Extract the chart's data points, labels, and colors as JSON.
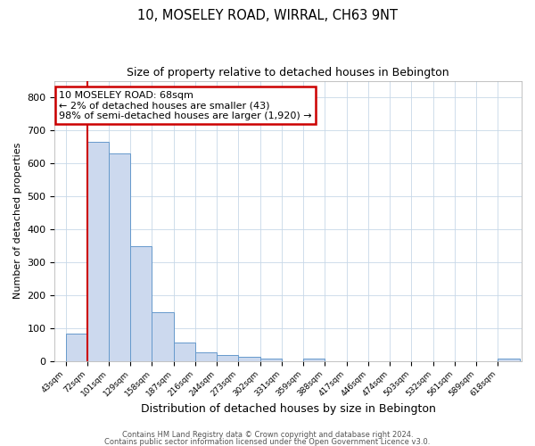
{
  "title": "10, MOSELEY ROAD, WIRRAL, CH63 9NT",
  "subtitle": "Size of property relative to detached houses in Bebington",
  "xlabel": "Distribution of detached houses by size in Bebington",
  "ylabel": "Number of detached properties",
  "bar_labels": [
    "43sqm",
    "72sqm",
    "101sqm",
    "129sqm",
    "158sqm",
    "187sqm",
    "216sqm",
    "244sqm",
    "273sqm",
    "302sqm",
    "331sqm",
    "359sqm",
    "388sqm",
    "417sqm",
    "446sqm",
    "474sqm",
    "503sqm",
    "532sqm",
    "561sqm",
    "589sqm",
    "618sqm"
  ],
  "bar_values": [
    83,
    665,
    630,
    348,
    148,
    57,
    27,
    18,
    13,
    8,
    0,
    7,
    0,
    0,
    0,
    0,
    0,
    0,
    0,
    0,
    7
  ],
  "bar_color": "#ccd9ee",
  "bar_edge_color": "#6699cc",
  "ylim": [
    0,
    850
  ],
  "yticks": [
    0,
    100,
    200,
    300,
    400,
    500,
    600,
    700,
    800
  ],
  "property_line_color": "#cc0000",
  "annotation_title": "10 MOSELEY ROAD: 68sqm",
  "annotation_line1": "← 2% of detached houses are smaller (43)",
  "annotation_line2": "98% of semi-detached houses are larger (1,920) →",
  "annotation_box_color": "#ffffff",
  "annotation_box_edge": "#cc0000",
  "footer1": "Contains HM Land Registry data © Crown copyright and database right 2024.",
  "footer2": "Contains public sector information licensed under the Open Government Licence v3.0.",
  "background_color": "#ffffff",
  "plot_bg_color": "#ffffff",
  "grid_color": "#c8d8e8"
}
